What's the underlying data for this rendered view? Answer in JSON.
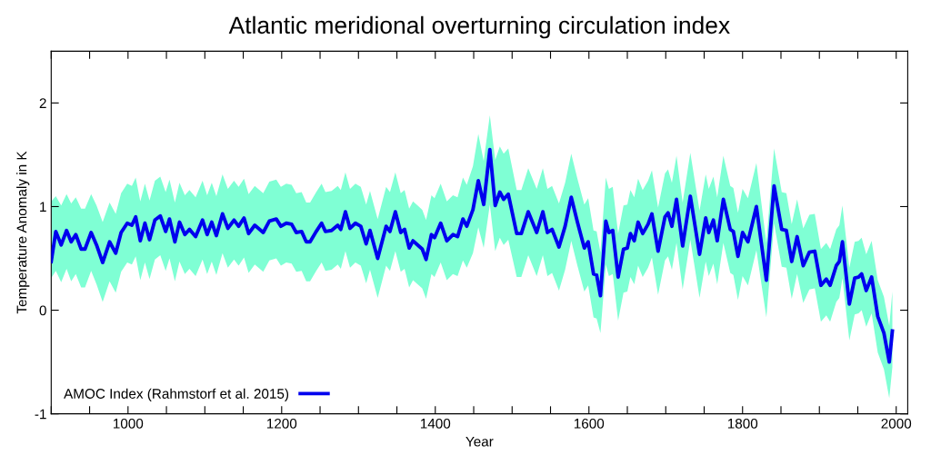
{
  "chart_data": {
    "type": "line",
    "title": "Atlantic meridional overturning circulation index",
    "xlabel": "Year",
    "ylabel": "Temperature Anomaly in K",
    "xlim": [
      900,
      2015
    ],
    "ylim": [
      -1,
      2.5
    ],
    "xticks": [
      {
        "value": 900,
        "label": null
      },
      {
        "value": 950,
        "label": null
      },
      1000,
      {
        "value": 1050,
        "label": null
      },
      {
        "value": 1100,
        "label": null
      },
      {
        "value": 1150,
        "label": null
      },
      1200,
      {
        "value": 1250,
        "label": null
      },
      {
        "value": 1300,
        "label": null
      },
      {
        "value": 1350,
        "label": null
      },
      1400,
      {
        "value": 1450,
        "label": null
      },
      {
        "value": 1500,
        "label": null
      },
      {
        "value": 1550,
        "label": null
      },
      1600,
      {
        "value": 1650,
        "label": null
      },
      {
        "value": 1700,
        "label": null
      },
      {
        "value": 1750,
        "label": null
      },
      1800,
      {
        "value": 1850,
        "label": null
      },
      {
        "value": 1900,
        "label": null
      },
      {
        "value": 1950,
        "label": null
      },
      2000
    ],
    "yticks": [
      -1,
      0,
      1,
      2
    ],
    "legend": "bottom left",
    "marker": "none",
    "line_style": "solid",
    "series": [
      {
        "name": "AMOC Index (Rahmstorf et al. 2015)",
        "color": "#0000ee",
        "x": [
          900,
          906,
          913,
          920,
          926,
          932,
          939,
          944,
          952,
          959,
          967,
          976,
          984,
          991,
          999,
          1005,
          1010,
          1016,
          1022,
          1028,
          1035,
          1042,
          1049,
          1054,
          1061,
          1067,
          1074,
          1080,
          1088,
          1097,
          1103,
          1109,
          1115,
          1123,
          1130,
          1138,
          1144,
          1151,
          1157,
          1165,
          1176,
          1184,
          1193,
          1199,
          1206,
          1213,
          1219,
          1226,
          1232,
          1237,
          1245,
          1252,
          1257,
          1265,
          1273,
          1277,
          1283,
          1289,
          1296,
          1303,
          1310,
          1315,
          1325,
          1336,
          1341,
          1348,
          1355,
          1360,
          1366,
          1371,
          1377,
          1383,
          1388,
          1395,
          1399,
          1407,
          1415,
          1423,
          1429,
          1436,
          1441,
          1449,
          1456,
          1463,
          1471,
          1478,
          1484,
          1489,
          1495,
          1506,
          1512,
          1521,
          1532,
          1540,
          1546,
          1552,
          1561,
          1569,
          1577,
          1585,
          1594,
          1599,
          1606,
          1610,
          1615,
          1622,
          1626,
          1631,
          1638,
          1645,
          1650,
          1654,
          1659,
          1664,
          1670,
          1677,
          1682,
          1690,
          1699,
          1703,
          1708,
          1714,
          1722,
          1732,
          1744,
          1752,
          1756,
          1762,
          1767,
          1775,
          1784,
          1788,
          1794,
          1800,
          1807,
          1818,
          1831,
          1841,
          1851,
          1857,
          1864,
          1871,
          1879,
          1887,
          1894,
          1902,
          1909,
          1914,
          1922,
          1926,
          1930,
          1939,
          1946,
          1951,
          1955,
          1961,
          1968,
          1976,
          1984,
          1991,
          1995
        ],
        "values": [
          0.47,
          0.76,
          0.63,
          0.77,
          0.66,
          0.73,
          0.59,
          0.59,
          0.75,
          0.63,
          0.46,
          0.66,
          0.55,
          0.75,
          0.84,
          0.82,
          0.9,
          0.67,
          0.84,
          0.68,
          0.87,
          0.91,
          0.76,
          0.88,
          0.66,
          0.85,
          0.73,
          0.78,
          0.71,
          0.87,
          0.73,
          0.85,
          0.72,
          0.93,
          0.79,
          0.87,
          0.81,
          0.89,
          0.74,
          0.82,
          0.75,
          0.86,
          0.88,
          0.81,
          0.84,
          0.83,
          0.75,
          0.76,
          0.66,
          0.66,
          0.76,
          0.84,
          0.76,
          0.77,
          0.82,
          0.78,
          0.95,
          0.79,
          0.84,
          0.81,
          0.64,
          0.77,
          0.5,
          0.81,
          0.76,
          0.95,
          0.75,
          0.78,
          0.6,
          0.67,
          0.63,
          0.59,
          0.49,
          0.73,
          0.7,
          0.84,
          0.67,
          0.73,
          0.71,
          0.88,
          0.81,
          0.97,
          1.25,
          1.02,
          1.55,
          1.01,
          1.14,
          1.07,
          1.12,
          0.74,
          0.74,
          0.95,
          0.75,
          0.95,
          0.75,
          0.78,
          0.61,
          0.81,
          1.09,
          0.85,
          0.6,
          0.66,
          0.35,
          0.34,
          0.14,
          0.86,
          0.75,
          0.77,
          0.32,
          0.59,
          0.6,
          0.74,
          0.67,
          0.85,
          0.74,
          0.83,
          0.93,
          0.57,
          0.9,
          0.94,
          0.81,
          1.07,
          0.62,
          1.1,
          0.54,
          0.89,
          0.75,
          0.87,
          0.67,
          1.07,
          0.78,
          0.76,
          0.52,
          0.75,
          0.66,
          1.0,
          0.29,
          1.2,
          0.78,
          0.77,
          0.47,
          0.71,
          0.43,
          0.56,
          0.57,
          0.24,
          0.3,
          0.24,
          0.43,
          0.47,
          0.66,
          0.06,
          0.31,
          0.32,
          0.35,
          0.19,
          0.32,
          -0.06,
          -0.22,
          -0.5,
          -0.2
        ],
        "lower": [
          0.31,
          0.38,
          0.27,
          0.4,
          0.28,
          0.35,
          0.22,
          0.22,
          0.38,
          0.25,
          0.08,
          0.28,
          0.17,
          0.37,
          0.46,
          0.44,
          0.52,
          0.29,
          0.46,
          0.3,
          0.49,
          0.53,
          0.38,
          0.5,
          0.28,
          0.47,
          0.35,
          0.4,
          0.33,
          0.49,
          0.35,
          0.47,
          0.34,
          0.55,
          0.41,
          0.49,
          0.43,
          0.51,
          0.36,
          0.44,
          0.37,
          0.48,
          0.5,
          0.43,
          0.46,
          0.45,
          0.37,
          0.38,
          0.28,
          0.28,
          0.38,
          0.46,
          0.38,
          0.39,
          0.44,
          0.4,
          0.57,
          0.41,
          0.46,
          0.43,
          0.26,
          0.39,
          0.12,
          0.43,
          0.38,
          0.57,
          0.37,
          0.4,
          0.22,
          0.29,
          0.25,
          0.21,
          0.11,
          0.35,
          0.32,
          0.46,
          0.29,
          0.35,
          0.33,
          0.48,
          0.41,
          0.55,
          0.8,
          0.6,
          1.02,
          0.57,
          0.7,
          0.63,
          0.68,
          0.32,
          0.32,
          0.53,
          0.33,
          0.53,
          0.33,
          0.36,
          0.19,
          0.39,
          0.67,
          0.43,
          0.18,
          0.24,
          -0.07,
          -0.08,
          -0.22,
          0.44,
          0.33,
          0.35,
          -0.1,
          0.17,
          0.18,
          0.32,
          0.25,
          0.43,
          0.32,
          0.41,
          0.51,
          0.15,
          0.48,
          0.52,
          0.39,
          0.65,
          0.2,
          0.68,
          0.12,
          0.47,
          0.33,
          0.45,
          0.25,
          0.65,
          0.36,
          0.34,
          0.1,
          0.33,
          0.24,
          0.58,
          -0.07,
          0.84,
          0.42,
          0.41,
          0.11,
          0.35,
          0.07,
          0.2,
          0.21,
          -0.11,
          -0.05,
          -0.11,
          0.08,
          0.12,
          0.31,
          -0.29,
          -0.04,
          -0.03,
          0.0,
          -0.16,
          -0.03,
          -0.41,
          -0.57,
          -0.85,
          -0.55
        ],
        "upper": [
          1.05,
          1.1,
          1.01,
          1.12,
          1.03,
          1.09,
          0.98,
          0.98,
          1.12,
          1.01,
          0.85,
          1.04,
          0.93,
          1.13,
          1.22,
          1.2,
          1.28,
          1.05,
          1.22,
          1.06,
          1.25,
          1.29,
          1.14,
          1.26,
          1.04,
          1.23,
          1.11,
          1.16,
          1.09,
          1.25,
          1.11,
          1.23,
          1.1,
          1.31,
          1.17,
          1.25,
          1.19,
          1.27,
          1.12,
          1.2,
          1.13,
          1.24,
          1.26,
          1.19,
          1.22,
          1.21,
          1.13,
          1.14,
          1.04,
          1.04,
          1.14,
          1.22,
          1.14,
          1.15,
          1.2,
          1.16,
          1.33,
          1.17,
          1.22,
          1.19,
          1.02,
          1.15,
          0.88,
          1.19,
          1.14,
          1.33,
          1.13,
          1.16,
          0.98,
          1.05,
          1.01,
          0.97,
          0.87,
          1.11,
          1.08,
          1.22,
          1.05,
          1.11,
          1.09,
          1.28,
          1.21,
          1.39,
          1.7,
          1.44,
          1.88,
          1.45,
          1.58,
          1.51,
          1.56,
          1.16,
          1.16,
          1.37,
          1.17,
          1.37,
          1.17,
          1.2,
          1.03,
          1.23,
          1.51,
          1.27,
          1.02,
          1.08,
          0.77,
          0.76,
          0.56,
          1.28,
          1.17,
          1.19,
          0.74,
          1.01,
          1.02,
          1.16,
          1.09,
          1.27,
          1.16,
          1.25,
          1.35,
          0.99,
          1.32,
          1.36,
          1.23,
          1.49,
          1.04,
          1.52,
          0.96,
          1.31,
          1.17,
          1.29,
          1.09,
          1.49,
          1.2,
          1.18,
          0.94,
          1.17,
          1.08,
          1.42,
          0.65,
          1.56,
          1.14,
          1.13,
          0.83,
          1.07,
          0.79,
          0.92,
          0.93,
          0.59,
          0.65,
          0.59,
          0.78,
          0.82,
          1.01,
          0.41,
          0.66,
          0.67,
          0.7,
          0.54,
          0.67,
          0.29,
          0.13,
          -0.15,
          0.18
        ]
      }
    ]
  }
}
